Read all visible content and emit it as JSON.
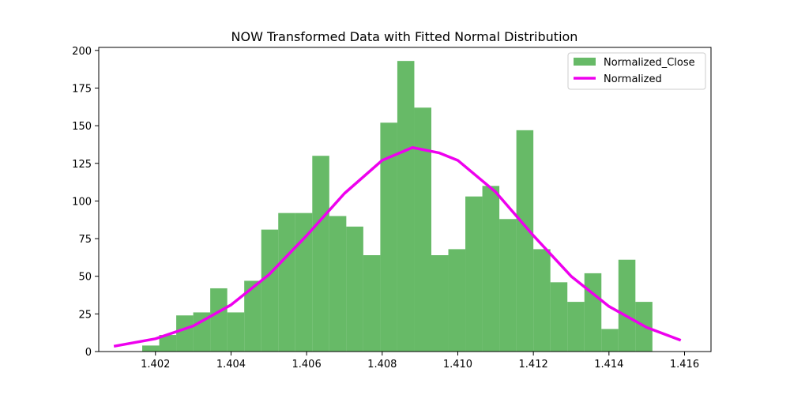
{
  "chart_data": {
    "type": "bar",
    "title": "NOW Transformed Data with Fitted Normal Distribution",
    "xlabel": "",
    "ylabel": "",
    "xlim": [
      1.4005,
      1.4167
    ],
    "ylim": [
      0,
      202
    ],
    "x_ticks": [
      1.402,
      1.404,
      1.406,
      1.408,
      1.41,
      1.412,
      1.414,
      1.416
    ],
    "x_tick_labels": [
      "1.402",
      "1.404",
      "1.406",
      "1.408",
      "1.410",
      "1.412",
      "1.414",
      "1.416"
    ],
    "y_ticks": [
      0,
      25,
      50,
      75,
      100,
      125,
      150,
      175,
      200
    ],
    "y_tick_labels": [
      "0",
      "25",
      "50",
      "75",
      "100",
      "125",
      "150",
      "175",
      "200"
    ],
    "grid": false,
    "legend_position": "top-right",
    "colors": {
      "bars": "#2ca02c",
      "bars_opacity": 0.72,
      "curve": "#ee00ee"
    },
    "series": [
      {
        "name": "Normalized_Close",
        "kind": "histogram",
        "bin_start": 1.40165,
        "bin_width": 0.00045,
        "counts": [
          4,
          11,
          24,
          26,
          42,
          26,
          47,
          81,
          92,
          92,
          130,
          90,
          83,
          64,
          152,
          193,
          162,
          64,
          68,
          103,
          110,
          88,
          147,
          68,
          46,
          33,
          52,
          15,
          61,
          33
        ]
      },
      {
        "name": "Normalized",
        "kind": "line",
        "x": [
          1.4009,
          1.402,
          1.403,
          1.404,
          1.405,
          1.406,
          1.407,
          1.408,
          1.4088,
          1.4095,
          1.41,
          1.411,
          1.412,
          1.413,
          1.414,
          1.415,
          1.4159
        ],
        "y": [
          3.5,
          8.5,
          17,
          31,
          51,
          77,
          105,
          127,
          135.5,
          132,
          127,
          106,
          77,
          50,
          30,
          16,
          7.5
        ]
      }
    ]
  }
}
